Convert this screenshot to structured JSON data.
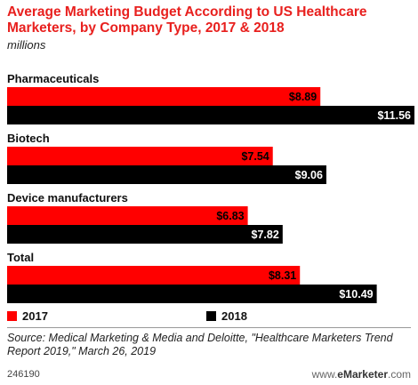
{
  "title": "Average Marketing Budget According to US Healthcare Marketers, by Company Type, 2017 & 2018",
  "subtitle": "millions",
  "source": "Source: Medical Marketing & Media and Deloitte, \"Healthcare Marketers Trend Report 2019,\" March 26, 2019",
  "chart_id": "246190",
  "brand": {
    "prefix": "www.",
    "name": "eMarketer",
    "suffix": ".com"
  },
  "colors": {
    "2017": "#ff0000",
    "2018": "#000000"
  },
  "chart_data": {
    "type": "bar",
    "orientation": "horizontal",
    "categories": [
      "Pharmaceuticals",
      "Biotech",
      "Device manufacturers",
      "Total"
    ],
    "series": [
      {
        "name": "2017",
        "values": [
          8.89,
          7.54,
          6.83,
          8.31
        ],
        "labels": [
          "$8.89",
          "$7.54",
          "$6.83",
          "$8.31"
        ]
      },
      {
        "name": "2018",
        "values": [
          11.56,
          9.06,
          7.82,
          10.49
        ],
        "labels": [
          "$11.56",
          "$9.06",
          "$7.82",
          "$10.49"
        ]
      }
    ],
    "xlim": [
      0,
      11.56
    ],
    "grid": false,
    "legend": "bottom-left"
  }
}
